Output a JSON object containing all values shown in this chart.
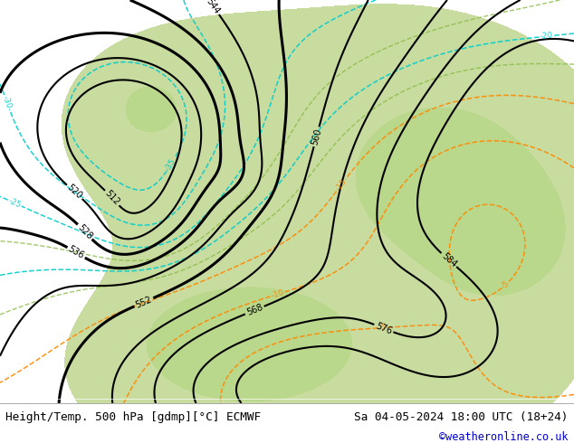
{
  "background_color": "#d4d4d4",
  "land_color": "#c8dca0",
  "gray_color": "#c0c0c0",
  "bottom_label_left": "Height/Temp. 500 hPa [gdmp][°C] ECMWF",
  "bottom_label_right": "Sa 04-05-2024 18:00 UTC (18+24)",
  "bottom_link": "©weatheronline.co.uk",
  "bottom_label_color": "#000000",
  "bottom_link_color": "#0000cc",
  "fig_width": 6.34,
  "fig_height": 4.9,
  "dpi": 100,
  "label_fontsize": 9.2,
  "link_fontsize": 8.5
}
